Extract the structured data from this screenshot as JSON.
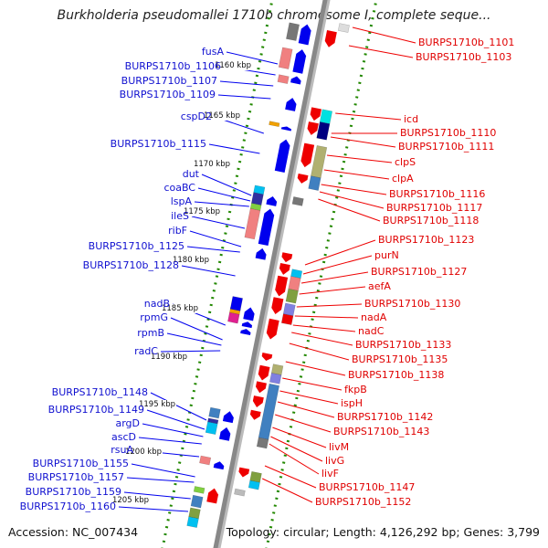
{
  "title": "Burkholderia pseudomallei 1710b chromosome I, complete seque...",
  "left_labels": [
    "fusA",
    "BURPS1710b_1106",
    "BURPS1710b_1107",
    "BURPS1710b_1109",
    "cspD2",
    "BURPS1710b_1115",
    "dut",
    "coaBC",
    "lspA",
    "ileS",
    "ribF",
    "BURPS1710b_1125",
    "BURPS1710b_1128",
    "nadB",
    "rpmG",
    "rpmB",
    "radC",
    "BURPS1710b_1148",
    "BURPS1710b_1149",
    "argD",
    "ascD",
    "rsuA",
    "BURPS1710b_1155",
    "BURPS1710b_1157",
    "BURPS1710b_1159",
    "BURPS1710b_1160"
  ],
  "right_labels": [
    "BURPS1710b_1101",
    "BURPS1710b_1103",
    "icd",
    "BURPS1710b_1110",
    "BURPS1710b_1111",
    "clpS",
    "clpA",
    "BURPS1710b_1116",
    "BURPS1710b_1117",
    "BURPS1710b_1118",
    "BURPS1710b_1123",
    "purN",
    "BURPS1710b_1127",
    "aefA",
    "BURPS1710b_1130",
    "nadA",
    "nadC",
    "BURPS1710b_1133",
    "BURPS1710b_1135",
    "BURPS1710b_1138",
    "fkpB",
    "ispH",
    "BURPS1710b_1142",
    "BURPS1710b_1143",
    "livM",
    "livG",
    "livF",
    "BURPS1710b_1147",
    "BURPS1710b_1152"
  ],
  "kbp_ticks": [
    "1160 kbp",
    "1165 kbp",
    "1170 kbp",
    "1175 kbp",
    "1180 kbp",
    "1185 kbp",
    "1190 kbp",
    "1195 kbp",
    "1200 kbp",
    "1205 kbp"
  ],
  "footer": {
    "accession": "Accession: NC_007434",
    "topology": "Topology: circular; Length: 4,126,292 bp; Genes: 3,799"
  },
  "colors": {
    "forward": "#ee0000",
    "reverse": "#0000ee",
    "backbone": "#888888",
    "ticks": "#228800"
  }
}
